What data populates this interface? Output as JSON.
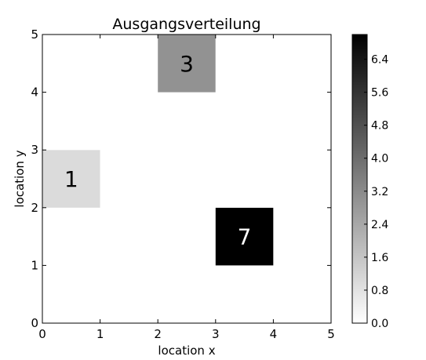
{
  "chart_data": {
    "type": "heatmap",
    "title": "Ausgangsverteilung",
    "xlabel": "location x",
    "ylabel": "location y",
    "xlim": [
      0,
      5
    ],
    "ylim": [
      0,
      5
    ],
    "x_ticks": [
      "0",
      "1",
      "2",
      "3",
      "4",
      "5"
    ],
    "y_ticks": [
      "0",
      "1",
      "2",
      "3",
      "4",
      "5"
    ],
    "grid": false,
    "colormap": "gray_r",
    "color_range": [
      0,
      7
    ],
    "colorbar_ticks": [
      "0.0",
      "0.8",
      "1.6",
      "2.4",
      "3.2",
      "4.0",
      "4.8",
      "5.6",
      "6.4"
    ],
    "grid_size": [
      5,
      5
    ],
    "values": [
      [
        0,
        0,
        0,
        0,
        0
      ],
      [
        0,
        0,
        0,
        7,
        0
      ],
      [
        1,
        0,
        0,
        0,
        0
      ],
      [
        0,
        0,
        0,
        0,
        0
      ],
      [
        0,
        0,
        3,
        0,
        0
      ]
    ],
    "annotations": [
      {
        "x": 0,
        "y": 2,
        "text": "1"
      },
      {
        "x": 2,
        "y": 4,
        "text": "3"
      },
      {
        "x": 3,
        "y": 1,
        "text": "7"
      }
    ]
  }
}
